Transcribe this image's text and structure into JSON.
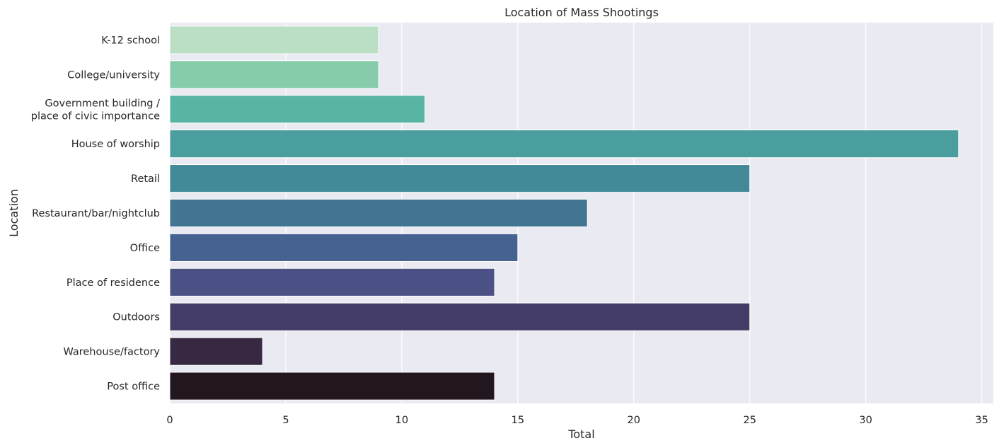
{
  "chart_data": {
    "type": "bar",
    "orientation": "horizontal",
    "title": "Location of Mass Shootings",
    "xlabel": "Total",
    "ylabel": "Location",
    "xlim": [
      0,
      35.5
    ],
    "xticks": [
      0,
      5,
      10,
      15,
      20,
      25,
      30,
      35
    ],
    "grid": true,
    "categories": [
      [
        "K-12 school"
      ],
      [
        "College/university"
      ],
      [
        "Government building /",
        "place of civic importance"
      ],
      [
        "House of worship"
      ],
      [
        "Retail"
      ],
      [
        "Restaurant/bar/nightclub"
      ],
      [
        "Office"
      ],
      [
        "Place of residence"
      ],
      [
        "Outdoors"
      ],
      [
        "Warehouse/factory"
      ],
      [
        "Post office"
      ]
    ],
    "values": [
      9,
      9,
      11,
      34,
      25,
      18,
      15,
      14,
      25,
      4,
      14
    ],
    "colors": [
      "#bbdfc5",
      "#86cbaa",
      "#59b4a4",
      "#4a9e9e",
      "#438a98",
      "#427591",
      "#466290",
      "#4b5085",
      "#433c67",
      "#372942",
      "#22161f"
    ],
    "background_color": "#eaeaf2",
    "grid_color": "#ffffff"
  }
}
